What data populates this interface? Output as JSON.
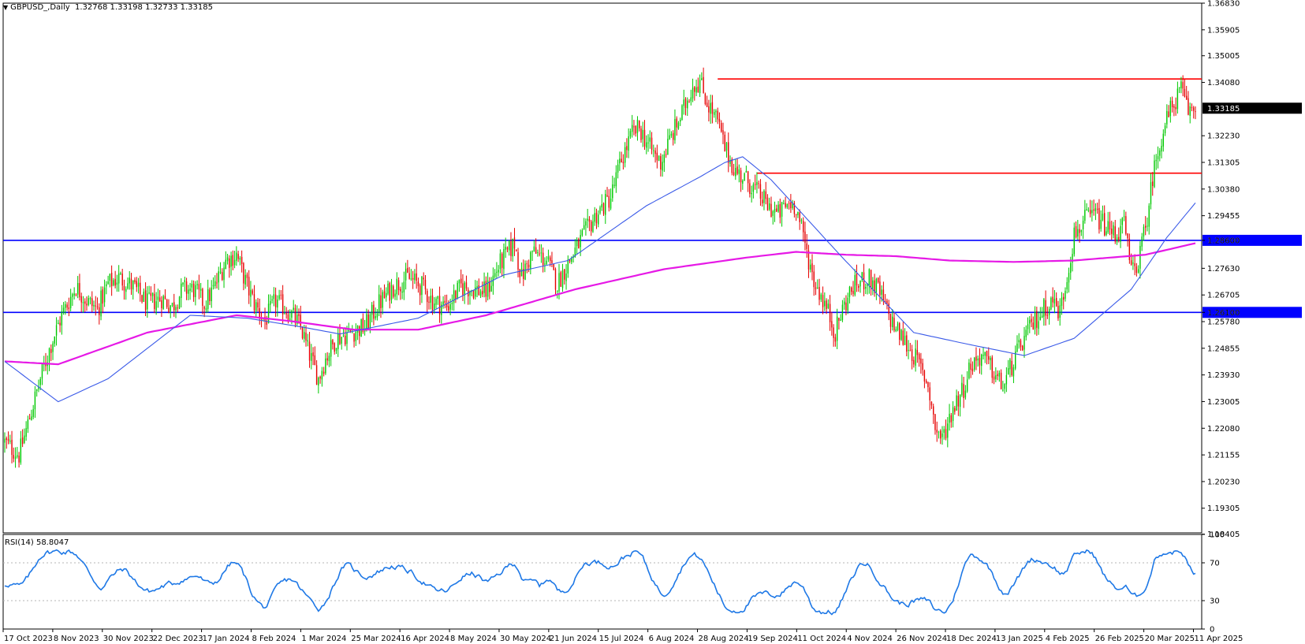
{
  "header": {
    "symbol": "GBPUSD_,Daily",
    "ohlc": "1.32768 1.33198 1.32733 1.33185"
  },
  "rsi_header": {
    "label": "RSI(14) 58.8047"
  },
  "chart_data": [
    {
      "type": "candlestick",
      "symbol": "GBPUSD_",
      "timeframe": "Daily",
      "ylim": [
        1.1845,
        1.3683
      ],
      "price_ticks": [
        "1.36830",
        "1.35905",
        "1.35005",
        "1.34080",
        "1.33185",
        "1.32230",
        "1.31305",
        "1.30380",
        "1.29455",
        "1.28600",
        "1.27630",
        "1.26705",
        "1.26100",
        "1.25780",
        "1.24855",
        "1.23930",
        "1.23005",
        "1.22080",
        "1.21155",
        "1.20230",
        "1.19305",
        "1.18405"
      ],
      "date_ticks": [
        "17 Oct 2023",
        "8 Nov 2023",
        "30 Nov 2023",
        "22 Dec 2023",
        "17 Jan 2024",
        "8 Feb 2024",
        "1 Mar 2024",
        "25 Mar 2024",
        "16 Apr 2024",
        "8 May 2024",
        "30 May 2024",
        "21 Jun 2024",
        "15 Jul 2024",
        "6 Aug 2024",
        "28 Aug 2024",
        "19 Sep 2024",
        "11 Oct 2024",
        "4 Nov 2024",
        "26 Nov 2024",
        "18 Dec 2024",
        "13 Jan 2025",
        "4 Feb 2025",
        "26 Feb 2025",
        "20 Mar 2025",
        "11 Apr 2025"
      ],
      "price_path": [
        [
          0,
          1.216
        ],
        [
          8,
          1.2115
        ],
        [
          14,
          1.2245
        ],
        [
          20,
          1.238
        ],
        [
          26,
          1.25
        ],
        [
          32,
          1.26
        ],
        [
          40,
          1.27
        ],
        [
          46,
          1.265
        ],
        [
          52,
          1.262
        ],
        [
          58,
          1.271
        ],
        [
          64,
          1.273
        ],
        [
          72,
          1.27
        ],
        [
          80,
          1.264
        ],
        [
          88,
          1.266
        ],
        [
          94,
          1.263
        ],
        [
          100,
          1.269
        ],
        [
          106,
          1.269
        ],
        [
          112,
          1.264
        ],
        [
          118,
          1.27
        ],
        [
          124,
          1.279
        ],
        [
          130,
          1.281
        ],
        [
          136,
          1.27
        ],
        [
          140,
          1.264
        ],
        [
          146,
          1.258
        ],
        [
          152,
          1.265
        ],
        [
          160,
          1.261
        ],
        [
          166,
          1.256
        ],
        [
          170,
          1.248
        ],
        [
          176,
          1.238
        ],
        [
          180,
          1.245
        ],
        [
          186,
          1.252
        ],
        [
          194,
          1.254
        ],
        [
          202,
          1.256
        ],
        [
          210,
          1.264
        ],
        [
          218,
          1.27
        ],
        [
          226,
          1.273
        ],
        [
          234,
          1.27
        ],
        [
          240,
          1.265
        ],
        [
          248,
          1.263
        ],
        [
          256,
          1.27
        ],
        [
          264,
          1.269
        ],
        [
          270,
          1.268
        ],
        [
          278,
          1.278
        ],
        [
          286,
          1.285
        ],
        [
          290,
          1.273
        ],
        [
          296,
          1.282
        ],
        [
          304,
          1.279
        ],
        [
          310,
          1.271
        ],
        [
          316,
          1.278
        ],
        [
          324,
          1.287
        ],
        [
          332,
          1.295
        ],
        [
          340,
          1.301
        ],
        [
          346,
          1.314
        ],
        [
          352,
          1.323
        ],
        [
          356,
          1.325
        ],
        [
          362,
          1.318
        ],
        [
          368,
          1.313
        ],
        [
          374,
          1.322
        ],
        [
          380,
          1.33
        ],
        [
          386,
          1.34
        ],
        [
          390,
          1.341
        ],
        [
          394,
          1.334
        ],
        [
          400,
          1.327
        ],
        [
          404,
          1.318
        ],
        [
          410,
          1.31
        ],
        [
          416,
          1.307
        ],
        [
          422,
          1.303
        ],
        [
          428,
          1.298
        ],
        [
          434,
          1.295
        ],
        [
          440,
          1.299
        ],
        [
          444,
          1.298
        ],
        [
          448,
          1.287
        ],
        [
          454,
          1.272
        ],
        [
          458,
          1.267
        ],
        [
          462,
          1.261
        ],
        [
          466,
          1.254
        ],
        [
          470,
          1.262
        ],
        [
          476,
          1.27
        ],
        [
          484,
          1.273
        ],
        [
          490,
          1.269
        ],
        [
          496,
          1.26
        ],
        [
          500,
          1.255
        ],
        [
          506,
          1.25
        ],
        [
          512,
          1.244
        ],
        [
          518,
          1.236
        ],
        [
          522,
          1.221
        ],
        [
          526,
          1.217
        ],
        [
          532,
          1.228
        ],
        [
          538,
          1.235
        ],
        [
          542,
          1.243
        ],
        [
          548,
          1.246
        ],
        [
          554,
          1.241
        ],
        [
          560,
          1.235
        ],
        [
          566,
          1.244
        ],
        [
          572,
          1.252
        ],
        [
          578,
          1.258
        ],
        [
          584,
          1.263
        ],
        [
          588,
          1.265
        ],
        [
          592,
          1.261
        ],
        [
          596,
          1.274
        ],
        [
          600,
          1.288
        ],
        [
          606,
          1.293
        ],
        [
          612,
          1.295
        ],
        [
          618,
          1.29
        ],
        [
          624,
          1.288
        ],
        [
          628,
          1.292
        ],
        [
          632,
          1.275
        ],
        [
          636,
          1.279
        ],
        [
          640,
          1.29
        ],
        [
          644,
          1.308
        ],
        [
          648,
          1.32
        ],
        [
          652,
          1.328
        ],
        [
          656,
          1.334
        ],
        [
          660,
          1.338
        ],
        [
          664,
          1.331
        ],
        [
          668,
          1.3319
        ]
      ],
      "ma_blue": [
        [
          0,
          1.244
        ],
        [
          30,
          1.23
        ],
        [
          58,
          1.238
        ],
        [
          104,
          1.26
        ],
        [
          136,
          1.259
        ],
        [
          166,
          1.256
        ],
        [
          188,
          1.2535
        ],
        [
          232,
          1.259
        ],
        [
          280,
          1.274
        ],
        [
          316,
          1.279
        ],
        [
          360,
          1.298
        ],
        [
          390,
          1.308
        ],
        [
          404,
          1.313
        ],
        [
          414,
          1.315
        ],
        [
          430,
          1.307
        ],
        [
          470,
          1.28
        ],
        [
          510,
          1.254
        ],
        [
          540,
          1.25
        ],
        [
          572,
          1.246
        ],
        [
          600,
          1.252
        ],
        [
          632,
          1.269
        ],
        [
          652,
          1.287
        ],
        [
          668,
          1.299
        ]
      ],
      "ma_magenta": [
        [
          0,
          1.244
        ],
        [
          30,
          1.243
        ],
        [
          80,
          1.254
        ],
        [
          130,
          1.26
        ],
        [
          160,
          1.258
        ],
        [
          196,
          1.255
        ],
        [
          232,
          1.255
        ],
        [
          270,
          1.26
        ],
        [
          320,
          1.269
        ],
        [
          370,
          1.276
        ],
        [
          416,
          1.28
        ],
        [
          444,
          1.282
        ],
        [
          472,
          1.281
        ],
        [
          500,
          1.2805
        ],
        [
          530,
          1.279
        ],
        [
          566,
          1.2785
        ],
        [
          600,
          1.279
        ],
        [
          640,
          1.281
        ],
        [
          668,
          1.285
        ]
      ],
      "horizontal_levels": [
        {
          "price": 1.286,
          "label": "1.28600",
          "color": "#0000ff"
        },
        {
          "price": 1.261,
          "label": "1.26100",
          "color": "#0000ff"
        },
        {
          "price": 1.342,
          "color": "#ff0000",
          "from": 400
        },
        {
          "price": 1.3093,
          "color": "#ff0000",
          "from": 422
        }
      ],
      "current_price_label": "1.33185",
      "colors": {
        "bull": "#00c800",
        "bear": "#e60000",
        "ma_fast": "#3a5ae8",
        "ma_slow": "#e619e6",
        "support": "#0000ff",
        "resistance": "#ff0000"
      }
    },
    {
      "type": "line",
      "name": "RSI(14)",
      "ylim": [
        0,
        100
      ],
      "ticks": [
        "100",
        "70",
        "30",
        "0"
      ],
      "levels": [
        70,
        30
      ],
      "last_value": 58.8047,
      "color": "#1e78e6"
    }
  ]
}
